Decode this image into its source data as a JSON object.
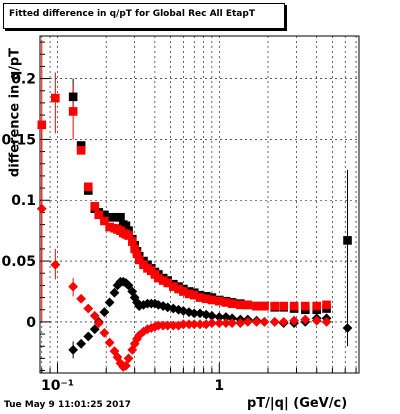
{
  "title": "Fitted difference in q/pT for Global Rec All EtapT",
  "footer_timestamp": "Tue May  9 11:01:25 2017",
  "colors": {
    "series_black": "#000000",
    "series_red": "#ff0000",
    "grid": "#000000"
  },
  "chart_data": {
    "type": "scatter",
    "title": "Fitted difference in q/pT for Global Rec All EtapT",
    "xlabel": "pT/|q| (GeV/c)",
    "ylabel": "difference in q/pT",
    "xscale": "log",
    "xlim": [
      0.078,
      7.3
    ],
    "ylim": [
      -0.042,
      0.235
    ],
    "grid": true,
    "x_tick_labels": [
      {
        "value": 0.1,
        "label": "10⁻¹"
      },
      {
        "value": 1,
        "label": "1"
      }
    ],
    "y_tick_labels": [
      {
        "value": 0,
        "label": "0"
      },
      {
        "value": 0.05,
        "label": "0.05"
      },
      {
        "value": 0.1,
        "label": "0.1"
      },
      {
        "value": 0.15,
        "label": "0.15"
      },
      {
        "value": 0.2,
        "label": "0.2"
      }
    ],
    "series": [
      {
        "marker": "square",
        "color": "#000000",
        "points": [
          [
            0.125,
            0.185
          ],
          [
            0.14,
            0.145
          ],
          [
            0.155,
            0.108
          ],
          [
            0.17,
            0.093
          ],
          [
            0.18,
            0.09
          ],
          [
            0.195,
            0.088
          ],
          [
            0.21,
            0.086
          ],
          [
            0.225,
            0.086
          ],
          [
            0.235,
            0.086
          ],
          [
            0.245,
            0.086
          ],
          [
            0.255,
            0.08
          ],
          [
            0.265,
            0.079
          ],
          [
            0.275,
            0.075
          ],
          [
            0.29,
            0.068
          ],
          [
            0.3,
            0.063
          ],
          [
            0.31,
            0.058
          ],
          [
            0.32,
            0.054
          ],
          [
            0.34,
            0.05
          ],
          [
            0.36,
            0.047
          ],
          [
            0.38,
            0.044
          ],
          [
            0.4,
            0.041
          ],
          [
            0.42,
            0.039
          ],
          [
            0.45,
            0.036
          ],
          [
            0.48,
            0.034
          ],
          [
            0.52,
            0.031
          ],
          [
            0.56,
            0.029
          ],
          [
            0.6,
            0.027
          ],
          [
            0.65,
            0.025
          ],
          [
            0.7,
            0.024
          ],
          [
            0.76,
            0.022
          ],
          [
            0.83,
            0.021
          ],
          [
            0.9,
            0.02
          ],
          [
            1.0,
            0.018
          ],
          [
            1.1,
            0.017
          ],
          [
            1.2,
            0.016
          ],
          [
            1.35,
            0.015
          ],
          [
            1.5,
            0.014
          ],
          [
            1.7,
            0.013
          ],
          [
            1.9,
            0.013
          ],
          [
            2.2,
            0.012
          ],
          [
            2.5,
            0.012
          ],
          [
            2.9,
            0.011
          ],
          [
            3.4,
            0.01
          ],
          [
            4.0,
            0.01
          ],
          [
            4.6,
            0.011
          ],
          [
            6.2,
            0.067
          ]
        ]
      },
      {
        "marker": "square",
        "color": "#ff0000",
        "points": [
          [
            0.08,
            0.162
          ],
          [
            0.097,
            0.184
          ],
          [
            0.125,
            0.173
          ],
          [
            0.14,
            0.141
          ],
          [
            0.155,
            0.111
          ],
          [
            0.17,
            0.095
          ],
          [
            0.18,
            0.088
          ],
          [
            0.195,
            0.083
          ],
          [
            0.21,
            0.078
          ],
          [
            0.225,
            0.077
          ],
          [
            0.235,
            0.076
          ],
          [
            0.245,
            0.075
          ],
          [
            0.255,
            0.073
          ],
          [
            0.265,
            0.072
          ],
          [
            0.275,
            0.071
          ],
          [
            0.29,
            0.066
          ],
          [
            0.3,
            0.06
          ],
          [
            0.31,
            0.056
          ],
          [
            0.32,
            0.051
          ],
          [
            0.34,
            0.047
          ],
          [
            0.36,
            0.044
          ],
          [
            0.38,
            0.042
          ],
          [
            0.4,
            0.039
          ],
          [
            0.42,
            0.036
          ],
          [
            0.45,
            0.034
          ],
          [
            0.48,
            0.032
          ],
          [
            0.52,
            0.029
          ],
          [
            0.56,
            0.027
          ],
          [
            0.6,
            0.025
          ],
          [
            0.65,
            0.023
          ],
          [
            0.7,
            0.022
          ],
          [
            0.76,
            0.02
          ],
          [
            0.83,
            0.019
          ],
          [
            0.9,
            0.018
          ],
          [
            1.0,
            0.017
          ],
          [
            1.1,
            0.016
          ],
          [
            1.2,
            0.015
          ],
          [
            1.35,
            0.014
          ],
          [
            1.5,
            0.014
          ],
          [
            1.7,
            0.013
          ],
          [
            1.9,
            0.013
          ],
          [
            2.2,
            0.013
          ],
          [
            2.5,
            0.013
          ],
          [
            2.9,
            0.013
          ],
          [
            3.4,
            0.013
          ],
          [
            4.0,
            0.013
          ],
          [
            4.6,
            0.014
          ]
        ]
      },
      {
        "marker": "diamond",
        "color": "#000000",
        "points": [
          [
            0.125,
            -0.023
          ],
          [
            0.14,
            -0.018
          ],
          [
            0.155,
            -0.012
          ],
          [
            0.17,
            -0.006
          ],
          [
            0.18,
            0.0
          ],
          [
            0.195,
            0.008
          ],
          [
            0.21,
            0.016
          ],
          [
            0.225,
            0.024
          ],
          [
            0.235,
            0.03
          ],
          [
            0.245,
            0.033
          ],
          [
            0.255,
            0.033
          ],
          [
            0.265,
            0.032
          ],
          [
            0.275,
            0.03
          ],
          [
            0.29,
            0.025
          ],
          [
            0.3,
            0.02
          ],
          [
            0.31,
            0.016
          ],
          [
            0.32,
            0.013
          ],
          [
            0.34,
            0.014
          ],
          [
            0.36,
            0.015
          ],
          [
            0.38,
            0.015
          ],
          [
            0.4,
            0.015
          ],
          [
            0.42,
            0.014
          ],
          [
            0.45,
            0.013
          ],
          [
            0.48,
            0.012
          ],
          [
            0.52,
            0.011
          ],
          [
            0.56,
            0.01
          ],
          [
            0.6,
            0.009
          ],
          [
            0.65,
            0.008
          ],
          [
            0.7,
            0.007
          ],
          [
            0.76,
            0.007
          ],
          [
            0.83,
            0.006
          ],
          [
            0.9,
            0.005
          ],
          [
            1.0,
            0.004
          ],
          [
            1.1,
            0.004
          ],
          [
            1.2,
            0.003
          ],
          [
            1.35,
            0.002
          ],
          [
            1.5,
            0.002
          ],
          [
            1.7,
            0.001
          ],
          [
            1.9,
            0.0
          ],
          [
            2.2,
            0.0
          ],
          [
            2.5,
            -0.001
          ],
          [
            2.9,
            -0.001
          ],
          [
            3.4,
            0.0
          ],
          [
            4.0,
            0.003
          ],
          [
            4.6,
            0.003
          ],
          [
            6.2,
            -0.005
          ]
        ]
      },
      {
        "marker": "diamond",
        "color": "#ff0000",
        "points": [
          [
            0.08,
            0.093
          ],
          [
            0.097,
            0.047
          ],
          [
            0.125,
            0.029
          ],
          [
            0.14,
            0.019
          ],
          [
            0.155,
            0.011
          ],
          [
            0.17,
            0.005
          ],
          [
            0.18,
            -0.001
          ],
          [
            0.195,
            -0.009
          ],
          [
            0.21,
            -0.017
          ],
          [
            0.225,
            -0.024
          ],
          [
            0.235,
            -0.029
          ],
          [
            0.245,
            -0.034
          ],
          [
            0.255,
            -0.037
          ],
          [
            0.265,
            -0.036
          ],
          [
            0.275,
            -0.03
          ],
          [
            0.29,
            -0.023
          ],
          [
            0.3,
            -0.018
          ],
          [
            0.31,
            -0.014
          ],
          [
            0.32,
            -0.011
          ],
          [
            0.34,
            -0.008
          ],
          [
            0.36,
            -0.006
          ],
          [
            0.38,
            -0.005
          ],
          [
            0.4,
            -0.004
          ],
          [
            0.42,
            -0.003
          ],
          [
            0.45,
            -0.003
          ],
          [
            0.48,
            -0.003
          ],
          [
            0.52,
            -0.003
          ],
          [
            0.56,
            -0.003
          ],
          [
            0.6,
            -0.002
          ],
          [
            0.65,
            -0.002
          ],
          [
            0.7,
            -0.002
          ],
          [
            0.76,
            -0.002
          ],
          [
            0.83,
            -0.002
          ],
          [
            0.9,
            -0.001
          ],
          [
            1.0,
            -0.001
          ],
          [
            1.1,
            -0.001
          ],
          [
            1.2,
            -0.001
          ],
          [
            1.35,
            -0.001
          ],
          [
            1.5,
            0.0
          ],
          [
            1.7,
            0.0
          ],
          [
            1.9,
            0.0
          ],
          [
            2.2,
            0.0
          ],
          [
            2.5,
            0.0
          ],
          [
            2.9,
            0.001
          ],
          [
            3.4,
            0.002
          ],
          [
            4.0,
            0.001
          ],
          [
            4.6,
            0.0
          ]
        ]
      }
    ]
  }
}
